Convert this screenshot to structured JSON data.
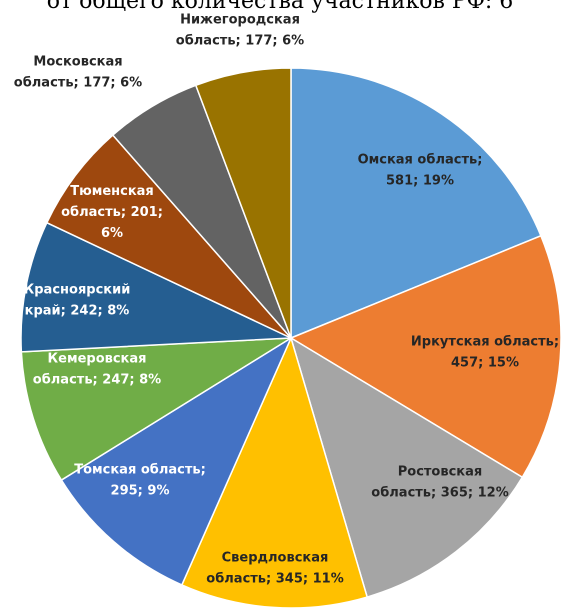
{
  "chart_data": {
    "type": "pie",
    "title": "от общего количества участников РФ: 6",
    "values": [
      581,
      457,
      365,
      345,
      295,
      247,
      242,
      201,
      177,
      177
    ],
    "value_labels": [
      [
        "Омская область;",
        "581; 19%"
      ],
      [
        "Иркутская область;",
        "457; 15%"
      ],
      [
        "Ростовская",
        "область; 365; 12%"
      ],
      [
        "Свердловская",
        "область; 345; 11%"
      ],
      [
        "Томская область;",
        "295; 9%"
      ],
      [
        "Кемеровская",
        "область; 247; 8%"
      ],
      [
        "Красноярский",
        "край; 242; 8%"
      ],
      [
        "Тюменская",
        "область; 201;",
        "6%"
      ],
      [
        "Московская",
        "область; 177; 6%"
      ],
      [
        "Нижегородская",
        "область; 177; 6%"
      ]
    ],
    "colors": [
      "#5b9bd5",
      "#ed7d31",
      "#a5a5a5",
      "#ffc000",
      "#4472c4",
      "#70ad47",
      "#255e91",
      "#9e480e",
      "#636363",
      "#997300"
    ]
  }
}
